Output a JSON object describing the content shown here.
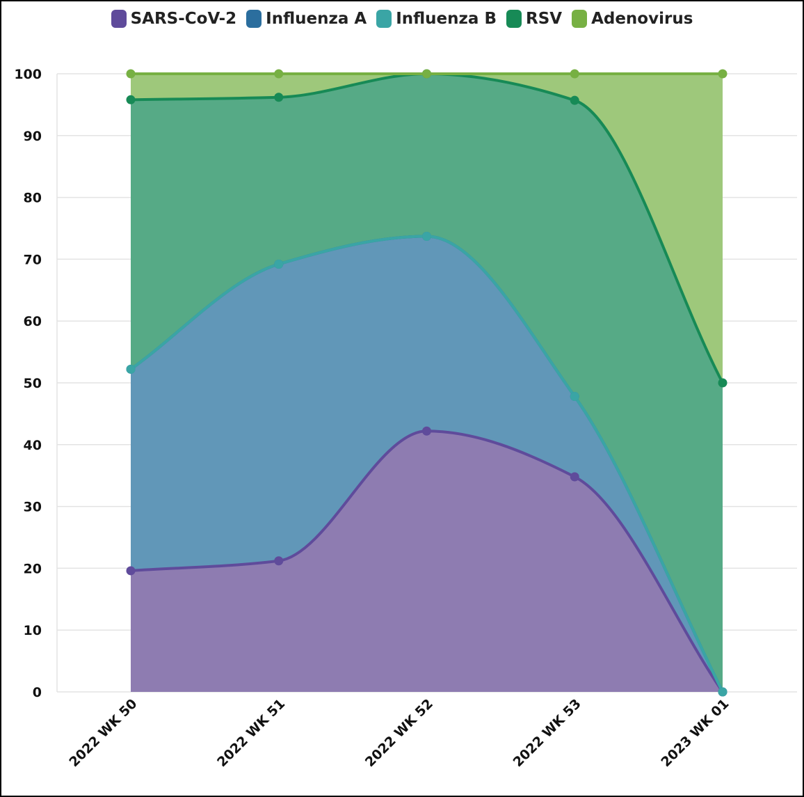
{
  "chart_data": {
    "type": "area",
    "stacked": true,
    "categories": [
      "2022 WK 50",
      "2022 WK 51",
      "2022 WK 52",
      "2022 WK 53",
      "2023 WK 01"
    ],
    "series": [
      {
        "name": "SARS-CoV-2",
        "color": "#5f4b9b",
        "fill": "#8e7cb1",
        "values": [
          19.6,
          21.2,
          42.2,
          34.8,
          0
        ]
      },
      {
        "name": "Influenza A",
        "color": "#2b6e9e",
        "fill": "#6197b8",
        "values": [
          32.6,
          48.0,
          31.5,
          13.0,
          0
        ]
      },
      {
        "name": "Influenza B",
        "color": "#3aa5a5",
        "fill": "#5eb1ad",
        "values": [
          0,
          0,
          0,
          0,
          0
        ]
      },
      {
        "name": "RSV",
        "color": "#178a56",
        "fill": "#56aa86",
        "values": [
          43.6,
          27.0,
          26.3,
          47.9,
          50.0
        ]
      },
      {
        "name": "Adenovirus",
        "color": "#77b043",
        "fill": "#9ec87b",
        "values": [
          4.2,
          3.8,
          0,
          4.3,
          50.0
        ]
      }
    ],
    "ylim": [
      0,
      100
    ],
    "yticks": [
      "0",
      "10",
      "20",
      "30",
      "40",
      "50",
      "60",
      "70",
      "80",
      "90",
      "100"
    ],
    "grid": true,
    "legend": "top-center",
    "xlabel": "",
    "ylabel": ""
  }
}
